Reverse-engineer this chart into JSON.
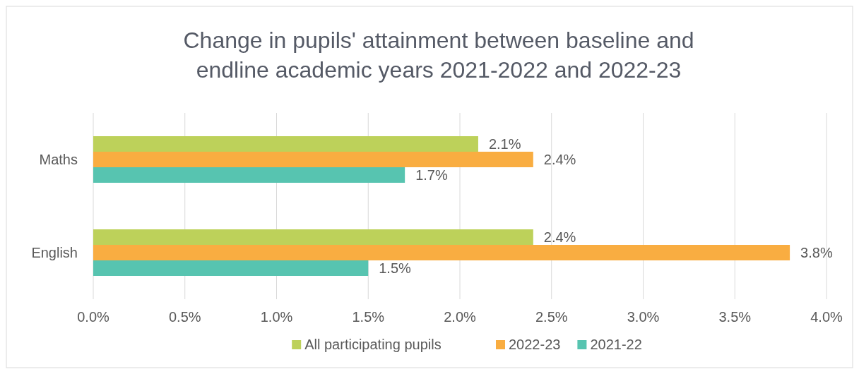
{
  "chart_data": {
    "type": "bar",
    "orientation": "horizontal",
    "title": "Change in pupils' attainment between baseline and endline academic years 2021-2022 and 2022-23",
    "categories": [
      "Maths",
      "English"
    ],
    "series": [
      {
        "name": "All participating pupils",
        "color": "#bdd15a",
        "values": [
          2.1,
          2.4
        ],
        "value_labels": [
          "2.1%",
          "2.4%"
        ]
      },
      {
        "name": "2022-23",
        "color": "#f9ad41",
        "values": [
          2.4,
          3.8
        ],
        "value_labels": [
          "2.4%",
          "3.8%"
        ]
      },
      {
        "name": "2021-22",
        "color": "#57c4b0",
        "values": [
          1.7,
          1.5
        ],
        "value_labels": [
          "1.7%",
          "1.5%"
        ]
      }
    ],
    "xlim": [
      0,
      4
    ],
    "xticks": [
      {
        "value": 0,
        "label": "0.0%"
      },
      {
        "value": 0.5,
        "label": "0.5%"
      },
      {
        "value": 1,
        "label": "1.0%"
      },
      {
        "value": 1.5,
        "label": "1.5%"
      },
      {
        "value": 2,
        "label": "2.0%"
      },
      {
        "value": 2.5,
        "label": "2.5%"
      },
      {
        "value": 3,
        "label": "3.0%"
      },
      {
        "value": 3.5,
        "label": "3.5%"
      },
      {
        "value": 4,
        "label": "4.0%"
      }
    ],
    "grid": "x",
    "legend": "bottom"
  }
}
